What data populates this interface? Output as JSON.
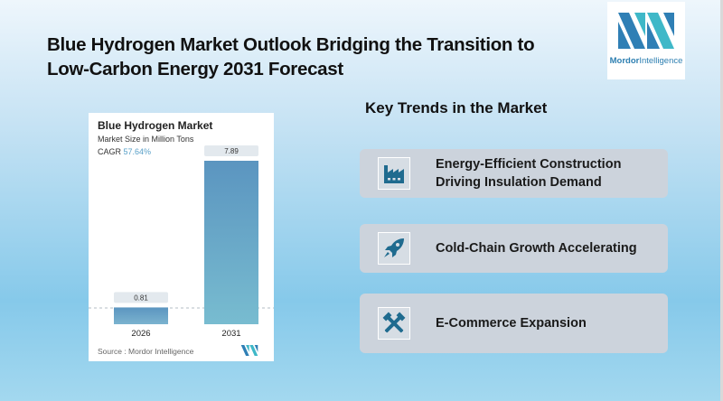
{
  "title": "Blue Hydrogen Market Outlook Bridging the Transition to Low-Carbon Energy 2031 Forecast",
  "logo": {
    "brand_bold": "Mordor",
    "brand_rest": "Intelligence"
  },
  "chart_card": {
    "title": "Blue Hydrogen Market",
    "subtitle": "Market Size in Million Tons",
    "cagr_label": "CAGR",
    "cagr_value": "57.64%",
    "source": "Source :  Mordor Intelligence"
  },
  "chart_data": {
    "type": "bar",
    "title": "Blue Hydrogen Market",
    "subtitle": "Market Size in Million Tons",
    "categories": [
      "2026",
      "2031"
    ],
    "values": [
      0.81,
      7.89
    ],
    "value_labels": [
      "0.81",
      "7.89"
    ],
    "xlabel": "",
    "ylabel": "Market Size in Million Tons",
    "ylim": [
      0,
      7.89
    ],
    "grid": false,
    "annotations": [
      "CAGR 57.64%"
    ],
    "colors": {
      "bar_top": "#5b95c0",
      "bar_bottom": "#78bcd0",
      "label_bg": "#e3e9ee"
    }
  },
  "key_trends": {
    "heading": "Key Trends in the Market",
    "items": [
      {
        "icon": "factory-icon",
        "lines": [
          "Energy-Efficient Construction",
          "Driving Insulation Demand"
        ]
      },
      {
        "icon": "rocket-icon",
        "lines": [
          "Cold-Chain Growth Accelerating"
        ]
      },
      {
        "icon": "hammers-icon",
        "lines": [
          "E-Commerce Expansion"
        ]
      }
    ]
  },
  "colors": {
    "icon": "#1f6b8f",
    "trend_bg": "#ccd3dc",
    "accent": "#2d7fb1"
  }
}
